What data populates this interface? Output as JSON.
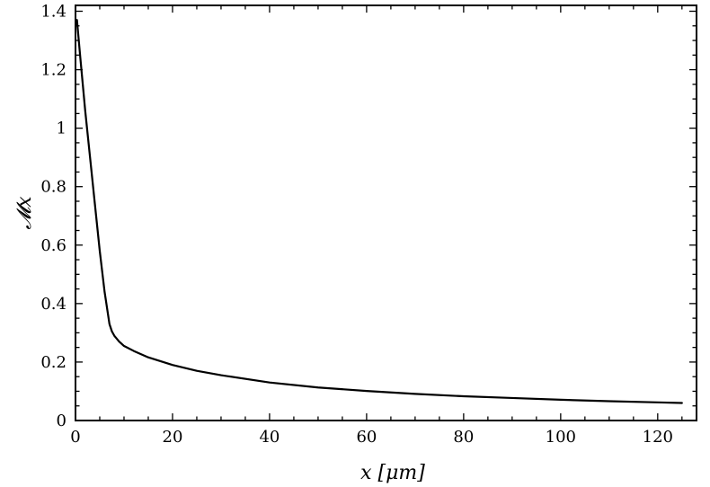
{
  "chart_data": {
    "type": "line",
    "xlabel": "x [μm]",
    "ylabel": "𝓜x",
    "xlim": [
      0,
      128
    ],
    "ylim": [
      0,
      1.42
    ],
    "xticks": [
      0,
      20,
      40,
      60,
      80,
      100,
      120
    ],
    "yticks": [
      0,
      0.2,
      0.4,
      0.6,
      0.8,
      1,
      1.2,
      1.4
    ],
    "xtick_labels": [
      "0",
      "20",
      "40",
      "60",
      "80",
      "100",
      "120"
    ],
    "ytick_labels": [
      "0",
      "0.2",
      "0.4",
      "0.6",
      "0.8",
      "1",
      "1.2",
      "1.4"
    ],
    "grid": false,
    "series": [
      {
        "color": "#000000",
        "x": [
          0.3,
          1,
          2,
          3,
          4,
          5,
          6,
          7,
          7.5,
          8,
          9,
          10,
          12,
          15,
          20,
          25,
          30,
          40,
          50,
          60,
          70,
          80,
          90,
          100,
          110,
          120,
          125
        ],
        "y": [
          1.37,
          1.24,
          1.06,
          0.9,
          0.74,
          0.58,
          0.44,
          0.33,
          0.305,
          0.29,
          0.27,
          0.255,
          0.238,
          0.216,
          0.19,
          0.17,
          0.155,
          0.13,
          0.113,
          0.101,
          0.091,
          0.083,
          0.077,
          0.071,
          0.066,
          0.062,
          0.06
        ]
      }
    ]
  }
}
